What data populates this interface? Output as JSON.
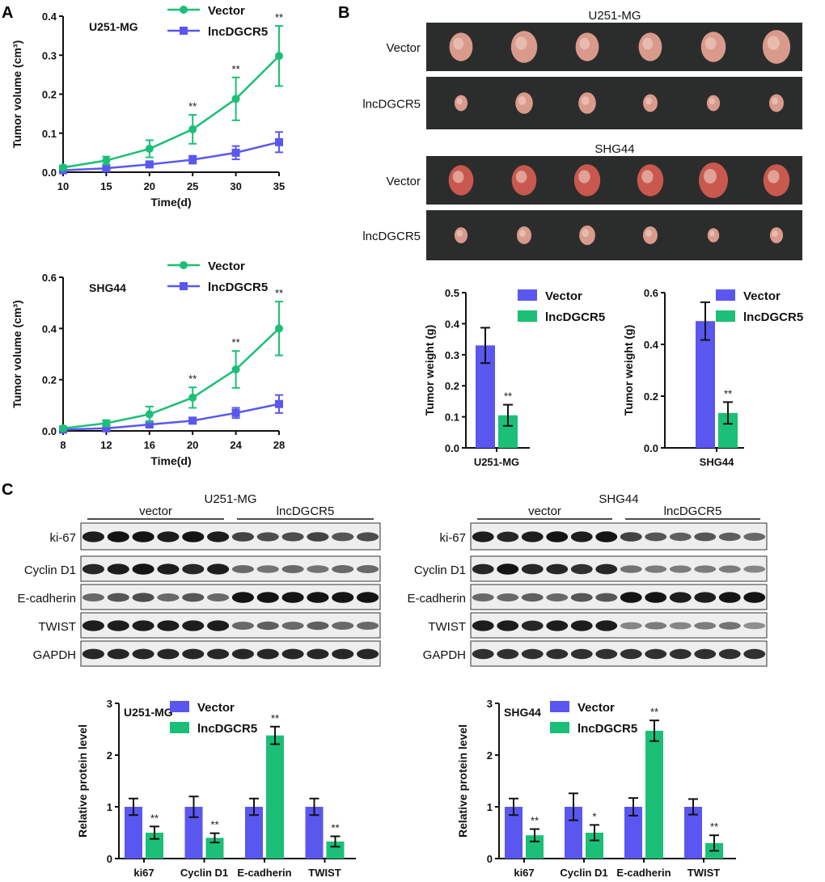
{
  "colors": {
    "vector_line": "#1cbf77",
    "lnc_line": "#5a57f0",
    "bar_vector": "#5a57f0",
    "bar_lnc": "#1cbf77",
    "photo_bg": "#2b2d2c",
    "tumor": "#d99a8c"
  },
  "panel_labels": [
    "A",
    "B",
    "C"
  ],
  "chart_data": [
    {
      "id": "a1",
      "type": "line",
      "title": "U251-MG",
      "xlabel": "Time(d)",
      "ylabel": "Tumor volume (cm³)",
      "xlim": [
        10,
        35
      ],
      "ylim": [
        0,
        0.4
      ],
      "xticks": [
        "10",
        "15",
        "20",
        "25",
        "30",
        "35"
      ],
      "yticks": [
        "0.0",
        "0.1",
        "0.2",
        "0.3",
        "0.4"
      ],
      "x": [
        10,
        15,
        20,
        25,
        30,
        35
      ],
      "series": [
        {
          "name": "Vector",
          "marker": "circle",
          "values": [
            0.012,
            0.03,
            0.06,
            0.11,
            0.188,
            0.298
          ],
          "errors": [
            0.005,
            0.01,
            0.022,
            0.037,
            0.055,
            0.077
          ]
        },
        {
          "name": "lncDGCR5",
          "marker": "square",
          "values": [
            0.005,
            0.01,
            0.02,
            0.032,
            0.05,
            0.077
          ],
          "errors": [
            0.002,
            0.005,
            0.005,
            0.01,
            0.017,
            0.026
          ]
        }
      ],
      "significance": [
        null,
        null,
        null,
        "**",
        "**",
        "**"
      ]
    },
    {
      "id": "a2",
      "type": "line",
      "title": "SHG44",
      "xlabel": "Time(d)",
      "ylabel": "Tumor volume (cm³)",
      "xlim": [
        8,
        28
      ],
      "ylim": [
        0,
        0.6
      ],
      "xticks": [
        "8",
        "12",
        "16",
        "20",
        "24",
        "28"
      ],
      "yticks": [
        "0.0",
        "0.2",
        "0.4",
        "0.6"
      ],
      "x": [
        8,
        12,
        16,
        20,
        24,
        28
      ],
      "series": [
        {
          "name": "Vector",
          "marker": "circle",
          "values": [
            0.01,
            0.03,
            0.065,
            0.13,
            0.24,
            0.4
          ],
          "errors": [
            0.005,
            0.012,
            0.03,
            0.04,
            0.072,
            0.105
          ]
        },
        {
          "name": "lncDGCR5",
          "marker": "square",
          "values": [
            0.005,
            0.01,
            0.025,
            0.04,
            0.07,
            0.105
          ],
          "errors": [
            0.002,
            0.005,
            0.008,
            0.01,
            0.02,
            0.035
          ]
        }
      ],
      "significance": [
        null,
        null,
        null,
        "**",
        "**",
        "**"
      ]
    },
    {
      "id": "b1",
      "type": "bar",
      "xlabel": "U251-MG",
      "ylabel": "Tumor weight (g)",
      "ylim": [
        0,
        0.5
      ],
      "yticks": [
        "0.0",
        "0.1",
        "0.2",
        "0.3",
        "0.4",
        "0.5"
      ],
      "series": [
        {
          "name": "Vector",
          "values": [
            0.33
          ],
          "errors": [
            0.057
          ]
        },
        {
          "name": "lncDGCR5",
          "values": [
            0.105
          ],
          "errors": [
            0.034
          ],
          "significance": [
            "**"
          ]
        }
      ]
    },
    {
      "id": "b2",
      "type": "bar",
      "xlabel": "SHG44",
      "ylabel": "Tumor weight (g)",
      "ylim": [
        0,
        0.6
      ],
      "yticks": [
        "0.0",
        "0.2",
        "0.4",
        "0.6"
      ],
      "series": [
        {
          "name": "Vector",
          "values": [
            0.49
          ],
          "errors": [
            0.073
          ]
        },
        {
          "name": "lncDGCR5",
          "values": [
            0.135
          ],
          "errors": [
            0.042
          ],
          "significance": [
            "**"
          ]
        }
      ]
    },
    {
      "id": "c1",
      "type": "bar",
      "title": "U251-MG",
      "ylabel": "Relative protein level",
      "ylim": [
        0,
        3
      ],
      "yticks": [
        "0",
        "1",
        "2",
        "3"
      ],
      "categories": [
        "ki67",
        "Cyclin D1",
        "E-cadherin",
        "TWIST"
      ],
      "series": [
        {
          "name": "Vector",
          "values": [
            1,
            1,
            1,
            1
          ],
          "errors": [
            0.16,
            0.2,
            0.16,
            0.16
          ]
        },
        {
          "name": "lncDGCR5",
          "values": [
            0.5,
            0.4,
            2.38,
            0.33
          ],
          "errors": [
            0.12,
            0.09,
            0.17,
            0.1
          ],
          "significance": [
            "**",
            "**",
            "**",
            "**"
          ]
        }
      ]
    },
    {
      "id": "c2",
      "type": "bar",
      "title": "SHG44",
      "ylabel": "Relative protein level",
      "ylim": [
        0,
        3
      ],
      "yticks": [
        "0",
        "1",
        "2",
        "3"
      ],
      "categories": [
        "ki67",
        "Cyclin D1",
        "E-cadherin",
        "TWIST"
      ],
      "series": [
        {
          "name": "Vector",
          "values": [
            1,
            1,
            1,
            1
          ],
          "errors": [
            0.16,
            0.26,
            0.17,
            0.15
          ]
        },
        {
          "name": "lncDGCR5",
          "values": [
            0.45,
            0.5,
            2.47,
            0.3
          ],
          "errors": [
            0.12,
            0.15,
            0.2,
            0.15
          ],
          "significance": [
            "**",
            "*",
            "**",
            "**"
          ]
        }
      ]
    }
  ],
  "photos": {
    "groups": [
      {
        "title": "U251-MG",
        "rows": [
          "Vector",
          "lncDGCR5"
        ],
        "sizes": [
          [
            0.8,
            0.9,
            0.8,
            0.8,
            0.85,
            0.95
          ],
          [
            0.45,
            0.6,
            0.6,
            0.5,
            0.45,
            0.5
          ]
        ]
      },
      {
        "title": "SHG44",
        "rows": [
          "Vector",
          "lncDGCR5"
        ],
        "sizes": [
          [
            0.85,
            0.85,
            0.9,
            0.9,
            1.0,
            0.9
          ],
          [
            0.45,
            0.5,
            0.55,
            0.5,
            0.4,
            0.45
          ]
        ]
      }
    ]
  },
  "blots": [
    {
      "title": "U251-MG",
      "groups": [
        "vector",
        "lncDGCR5"
      ],
      "proteins": [
        "ki-67",
        "Cyclin D1",
        "E-cadherin",
        "TWIST",
        "GAPDH"
      ],
      "intensity": [
        [
          0.9,
          0.95,
          0.95,
          0.9,
          0.95,
          0.9,
          0.7,
          0.65,
          0.65,
          0.7,
          0.6,
          0.65
        ],
        [
          0.85,
          0.9,
          0.95,
          0.9,
          0.85,
          0.9,
          0.5,
          0.45,
          0.5,
          0.45,
          0.5,
          0.5
        ],
        [
          0.5,
          0.6,
          0.65,
          0.5,
          0.6,
          0.5,
          0.95,
          0.95,
          0.95,
          0.95,
          0.95,
          0.95
        ],
        [
          0.9,
          0.9,
          0.9,
          0.9,
          0.9,
          0.9,
          0.5,
          0.55,
          0.5,
          0.55,
          0.5,
          0.5
        ],
        [
          0.85,
          0.85,
          0.85,
          0.85,
          0.85,
          0.85,
          0.85,
          0.85,
          0.85,
          0.85,
          0.85,
          0.85
        ]
      ]
    },
    {
      "title": "SHG44",
      "groups": [
        "vector",
        "lncDGCR5"
      ],
      "proteins": [
        "ki-67",
        "Cyclin D1",
        "E-cadherin",
        "TWIST",
        "GAPDH"
      ],
      "intensity": [
        [
          0.9,
          0.85,
          0.9,
          0.95,
          0.9,
          0.95,
          0.7,
          0.6,
          0.55,
          0.6,
          0.55,
          0.5
        ],
        [
          0.85,
          0.95,
          0.85,
          0.85,
          0.8,
          0.85,
          0.45,
          0.4,
          0.4,
          0.4,
          0.4,
          0.35
        ],
        [
          0.5,
          0.5,
          0.55,
          0.5,
          0.6,
          0.6,
          0.95,
          0.95,
          0.9,
          0.9,
          0.95,
          0.95
        ],
        [
          0.9,
          0.9,
          0.85,
          0.9,
          0.9,
          0.9,
          0.35,
          0.4,
          0.35,
          0.4,
          0.45,
          0.3
        ],
        [
          0.8,
          0.8,
          0.8,
          0.8,
          0.8,
          0.8,
          0.8,
          0.8,
          0.8,
          0.8,
          0.8,
          0.8
        ]
      ]
    }
  ]
}
